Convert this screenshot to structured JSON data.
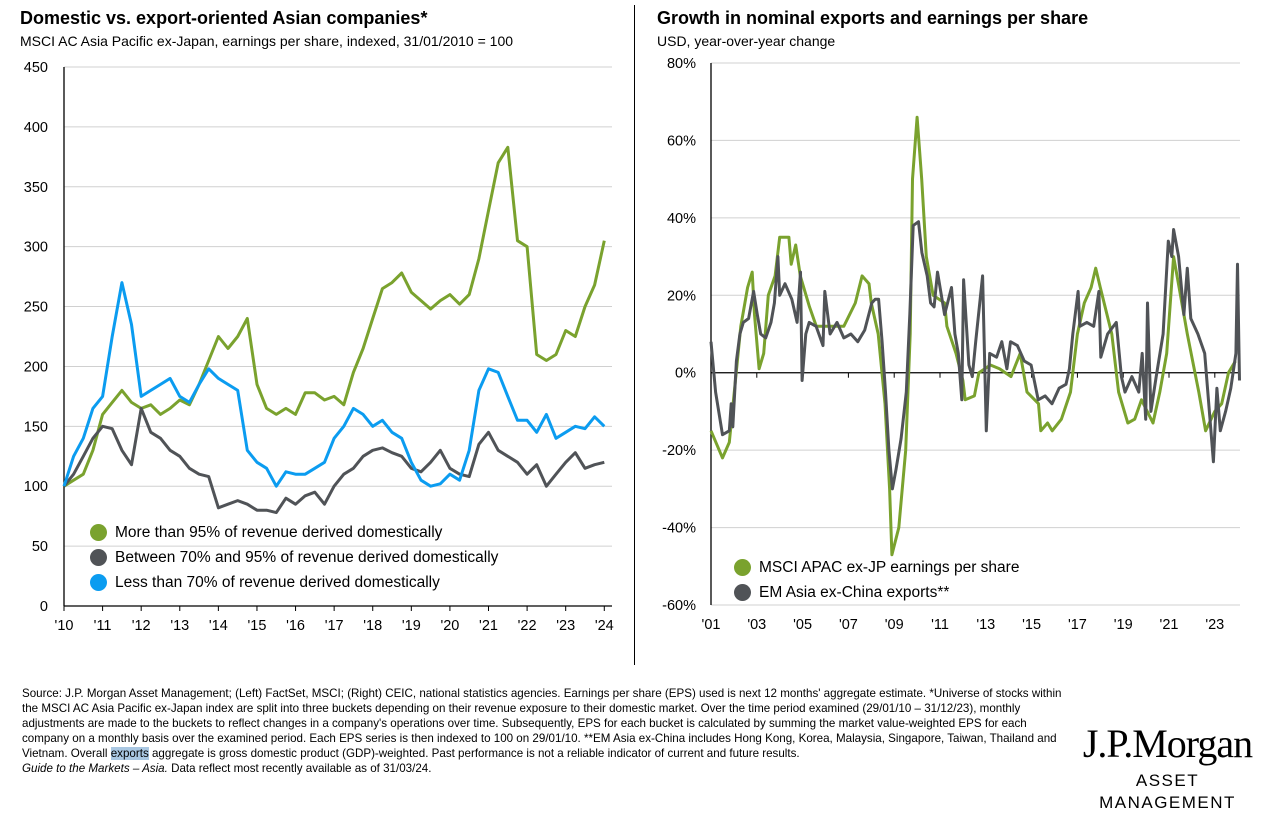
{
  "colors": {
    "green": "#7aa22e",
    "gray": "#505357",
    "blue": "#0b9cf0",
    "grid": "#d0d0d0"
  },
  "chart_data": [
    {
      "type": "line",
      "title": "Domestic vs. export-oriented Asian companies*",
      "subtitle": "MSCI AC Asia Pacific ex-Japan, earnings per share, indexed, 31/01/2010 = 100",
      "xlim": [
        2010,
        2024.2
      ],
      "ylim": [
        0,
        450
      ],
      "grid": true,
      "legend": "bottom-left",
      "ytick_values": [
        0,
        50,
        100,
        150,
        200,
        250,
        300,
        350,
        400,
        450
      ],
      "ytick_labels": [
        "0",
        "50",
        "100",
        "150",
        "200",
        "250",
        "300",
        "350",
        "400",
        "450"
      ],
      "xtick_values": [
        2010,
        2011,
        2012,
        2013,
        2014,
        2015,
        2016,
        2017,
        2018,
        2019,
        2020,
        2021,
        2022,
        2023,
        2024
      ],
      "xtick_labels": [
        "'10",
        "'11",
        "'12",
        "'13",
        "'14",
        "'15",
        "'16",
        "'17",
        "'18",
        "'19",
        "'20",
        "'21",
        "'22",
        "'23",
        "'24"
      ],
      "x_start": 2010,
      "x_step": 0.25,
      "series": [
        {
          "name": "More than 95% of revenue derived domestically",
          "color": "#7aa22e",
          "values": [
            100,
            105,
            110,
            130,
            160,
            170,
            180,
            170,
            165,
            168,
            160,
            165,
            172,
            168,
            185,
            205,
            225,
            215,
            225,
            240,
            185,
            165,
            160,
            165,
            160,
            178,
            178,
            172,
            175,
            168,
            195,
            215,
            240,
            265,
            270,
            278,
            262,
            255,
            248,
            255,
            260,
            252,
            260,
            290,
            330,
            370,
            383,
            305,
            300,
            210,
            205,
            210,
            230,
            225,
            250,
            268,
            305
          ]
        },
        {
          "name": "Between 70% and 95% of revenue derived domestically",
          "color": "#505357",
          "values": [
            100,
            110,
            125,
            140,
            150,
            148,
            130,
            118,
            165,
            145,
            140,
            130,
            125,
            115,
            110,
            108,
            82,
            85,
            88,
            85,
            80,
            80,
            78,
            90,
            85,
            92,
            95,
            85,
            100,
            110,
            115,
            125,
            130,
            132,
            128,
            125,
            115,
            112,
            120,
            130,
            115,
            110,
            108,
            135,
            145,
            130,
            125,
            120,
            110,
            118,
            100,
            110,
            120,
            128,
            115,
            118,
            120
          ]
        },
        {
          "name": "Less than 70% of revenue derived domestically",
          "color": "#0b9cf0",
          "values": [
            100,
            125,
            140,
            165,
            175,
            225,
            270,
            235,
            175,
            180,
            185,
            190,
            175,
            170,
            185,
            198,
            190,
            185,
            180,
            130,
            120,
            115,
            100,
            112,
            110,
            110,
            115,
            120,
            140,
            150,
            165,
            160,
            150,
            155,
            145,
            140,
            120,
            105,
            100,
            102,
            110,
            105,
            130,
            180,
            198,
            195,
            175,
            155,
            155,
            145,
            160,
            140,
            145,
            150,
            148,
            158,
            150
          ]
        }
      ]
    },
    {
      "type": "line",
      "title": "Growth in nominal exports and earnings per share",
      "subtitle": "USD, year-over-year change",
      "xlim": [
        2001,
        2024.1
      ],
      "ylim": [
        -60,
        80
      ],
      "grid": true,
      "legend": "bottom-left",
      "ytick_values": [
        -60,
        -40,
        -20,
        0,
        20,
        40,
        60,
        80
      ],
      "ytick_labels": [
        "-60%",
        "-40%",
        "-20%",
        "0%",
        "20%",
        "40%",
        "60%",
        "80%"
      ],
      "xtick_values": [
        2001,
        2003,
        2005,
        2007,
        2009,
        2011,
        2013,
        2015,
        2017,
        2019,
        2021,
        2023
      ],
      "xtick_labels": [
        "'01",
        "'03",
        "'05",
        "'07",
        "'09",
        "'11",
        "'13",
        "'15",
        "'17",
        "'19",
        "'21",
        "'23"
      ],
      "series": [
        {
          "name": "MSCI APAC ex-JP earnings per share",
          "color": "#7aa22e",
          "x": [
            2001.0,
            2001.5,
            2001.8,
            2002.1,
            2002.3,
            2002.6,
            2002.8,
            2002.9,
            2003.1,
            2003.3,
            2003.5,
            2003.8,
            2004.0,
            2004.4,
            2004.5,
            2004.7,
            2004.9,
            2005.3,
            2005.6,
            2006.2,
            2006.8,
            2007.3,
            2007.6,
            2007.9,
            2008.0,
            2008.3,
            2008.6,
            2008.8,
            2008.9,
            2009.2,
            2009.5,
            2009.7,
            2009.8,
            2010.0,
            2010.2,
            2010.4,
            2010.7,
            2011.2,
            2011.3,
            2011.7,
            2012.0,
            2012.1,
            2012.5,
            2012.7,
            2013.2,
            2013.6,
            2014.1,
            2014.5,
            2014.8,
            2015.3,
            2015.4,
            2015.7,
            2015.9,
            2016.3,
            2016.7,
            2017.0,
            2017.3,
            2017.6,
            2017.8,
            2018.0,
            2018.5,
            2018.8,
            2019.2,
            2019.5,
            2019.8,
            2020.3,
            2020.6,
            2020.9,
            2021.2,
            2021.5,
            2021.8,
            2022.3,
            2022.6,
            2023.0,
            2023.3,
            2023.6,
            2023.9
          ],
          "y": [
            -15,
            -22,
            -18,
            0,
            12,
            22,
            26,
            15,
            1,
            5,
            20,
            25,
            35,
            35,
            28,
            33,
            25,
            17,
            12,
            12,
            12,
            18,
            25,
            23,
            18,
            10,
            -8,
            -30,
            -47,
            -40,
            -20,
            10,
            50,
            66,
            50,
            30,
            20,
            18,
            12,
            5,
            -2,
            -7,
            -6,
            0,
            2,
            1,
            -1,
            5,
            -5,
            -8,
            -15,
            -13,
            -15,
            -12,
            -5,
            10,
            18,
            22,
            27,
            22,
            10,
            -5,
            -13,
            -12,
            -7,
            -13,
            -5,
            5,
            30,
            20,
            10,
            -5,
            -15,
            -10,
            -8,
            0,
            3
          ]
        },
        {
          "name": "EM Asia ex-China exports**",
          "color": "#505357",
          "x": [
            2001.0,
            2001.2,
            2001.5,
            2001.8,
            2001.88,
            2001.95,
            2002.11,
            2002.26,
            2002.41,
            2002.64,
            2002.86,
            2003.02,
            2003.17,
            2003.39,
            2003.62,
            2003.77,
            2003.92,
            2004.0,
            2004.23,
            2004.53,
            2004.76,
            2004.91,
            2004.98,
            2005.14,
            2005.29,
            2005.59,
            2005.89,
            2005.97,
            2006.2,
            2006.5,
            2006.8,
            2007.11,
            2007.41,
            2007.71,
            2008.02,
            2008.17,
            2008.32,
            2008.47,
            2008.62,
            2008.77,
            2008.92,
            2009.08,
            2009.3,
            2009.53,
            2009.68,
            2009.83,
            2010.06,
            2010.21,
            2010.44,
            2010.59,
            2010.74,
            2010.89,
            2011.2,
            2011.5,
            2011.65,
            2011.8,
            2011.95,
            2012.03,
            2012.26,
            2012.41,
            2012.56,
            2012.86,
            2013.02,
            2013.17,
            2013.47,
            2013.7,
            2013.92,
            2014.08,
            2014.38,
            2014.68,
            2014.98,
            2015.29,
            2015.59,
            2015.89,
            2016.2,
            2016.5,
            2016.65,
            2016.8,
            2017.03,
            2017.11,
            2017.41,
            2017.71,
            2017.94,
            2018.02,
            2018.32,
            2018.7,
            2018.92,
            2019.08,
            2019.38,
            2019.68,
            2019.83,
            2019.98,
            2020.06,
            2020.21,
            2020.44,
            2020.74,
            2020.97,
            2021.12,
            2021.2,
            2021.42,
            2021.65,
            2021.8,
            2021.95,
            2022.26,
            2022.56,
            2022.79,
            2022.94,
            2023.09,
            2023.24,
            2023.47,
            2023.7,
            2023.92,
            2023.99,
            2024.08
          ],
          "y": [
            8,
            -5,
            -16,
            -15,
            -8,
            -14,
            3,
            10,
            13,
            14,
            21,
            15,
            10,
            9,
            13,
            18,
            30,
            20,
            23,
            19,
            13,
            26,
            -2,
            10,
            13,
            12,
            7,
            21,
            10,
            13,
            9,
            10,
            8,
            11,
            18,
            19,
            19,
            8,
            -5,
            -20,
            -30,
            -25,
            -17,
            -5,
            15,
            38,
            39,
            31,
            25,
            18,
            17,
            26,
            15,
            22,
            10,
            5,
            -7,
            24,
            2,
            -1,
            8,
            25,
            -15,
            5,
            4,
            8,
            1,
            8,
            7,
            3,
            2,
            -7,
            -6,
            -8,
            -4,
            -3,
            1,
            10,
            21,
            12,
            13,
            12,
            21,
            4,
            10,
            13,
            -1,
            -5,
            -1,
            -5,
            5,
            -12,
            18,
            -10,
            -1,
            10,
            34,
            30,
            37,
            30,
            15,
            27,
            14,
            10,
            5,
            -12,
            -23,
            -4,
            -15,
            -10,
            -4,
            5,
            28,
            -2
          ]
        }
      ]
    }
  ],
  "footer": {
    "text_1": "Source: J.P. Morgan Asset Management; (Left) FactSet, MSCI; (Right) CEIC, national statistics agencies. Earnings per share (EPS) used is next 12 months' aggregate estimate. *Universe of stocks within the MSCI AC Asia Pacific ex-Japan index are split into three buckets depending on their revenue exposure to their domestic market. Over the time period examined (29/01/10 – 31/12/23), monthly adjustments are made to the buckets to reflect changes in a company's operations over time. Subsequently, EPS for each bucket is calculated by summing the market value-weighted EPS for each company on a monthly basis over the examined period. Each EPS series is then indexed to 100 on 29/01/10. **EM Asia ex-China includes Hong Kong, Korea, Malaysia, Singapore, Taiwan, Thailand and Vietnam. Overall ",
    "highlight": "exports",
    "text_2": " aggregate is gross domestic product (GDP)-weighted. Past performance is not a reliable indicator of current and future results.",
    "guide": "Guide to the Markets – Asia.",
    "data_note": " Data reflect most recently available as of 31/03/24."
  },
  "logo": {
    "brand": "J.P.Morgan",
    "division": "ASSET MANAGEMENT"
  }
}
